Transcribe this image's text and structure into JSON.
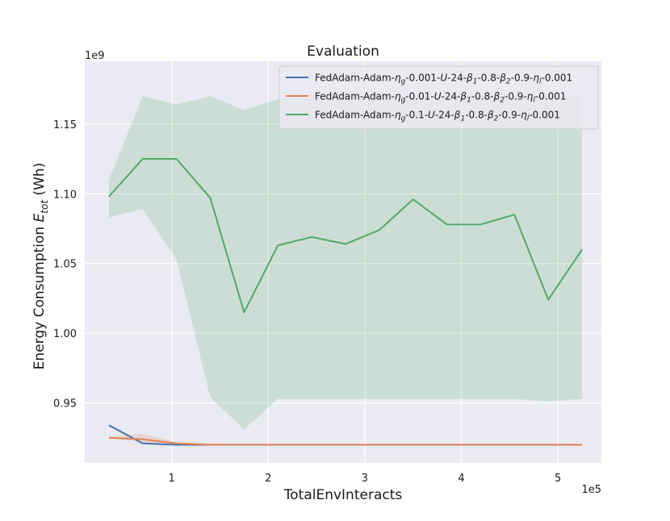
{
  "chart_data": {
    "type": "line",
    "title": "Evaluation",
    "xlabel": "TotalEnvInteracts",
    "ylabel_parts": [
      "Energy Consumption ",
      "E",
      "tot",
      " (Wh)"
    ],
    "x_exponent_label": "1e5",
    "y_exponent_label": "1e9",
    "x_unit_scale": 100000,
    "y_unit_scale": 1000000000,
    "xlim": [
      10000,
      545000
    ],
    "ylim": [
      0.907,
      1.195
    ],
    "x_ticks": [
      100000,
      200000,
      300000,
      400000,
      500000
    ],
    "x_tick_labels": [
      "1",
      "2",
      "3",
      "4",
      "5"
    ],
    "y_ticks": [
      0.95,
      1.0,
      1.05,
      1.1,
      1.15
    ],
    "y_tick_labels": [
      "0.95",
      "1.00",
      "1.05",
      "1.10",
      "1.15"
    ],
    "grid": true,
    "legend_position": "top-right",
    "x": [
      35000,
      70000,
      105000,
      140000,
      175000,
      210000,
      245000,
      280000,
      315000,
      350000,
      385000,
      420000,
      455000,
      490000,
      525000
    ],
    "series": [
      {
        "name_parts": [
          [
            "FedAdam-Adam-",
            "n"
          ],
          [
            "η",
            "i"
          ],
          [
            "g",
            "sub"
          ],
          [
            "-0.001-",
            "n"
          ],
          [
            "U",
            "i"
          ],
          [
            "-24-",
            "n"
          ],
          [
            "β",
            "i"
          ],
          [
            "1",
            "sub"
          ],
          [
            "-0.8-",
            "n"
          ],
          [
            "β",
            "i"
          ],
          [
            "2",
            "sub"
          ],
          [
            "-0.9-",
            "n"
          ],
          [
            "η",
            "i"
          ],
          [
            "l",
            "sub"
          ],
          [
            "-0.001",
            "n"
          ]
        ],
        "color": "#4c72b0",
        "values": [
          0.934,
          0.921,
          0.92,
          0.92,
          0.92,
          0.92,
          0.92,
          0.92,
          0.92,
          0.92,
          0.92,
          0.92,
          0.92,
          0.92,
          0.92
        ],
        "lower": [
          0.934,
          0.921,
          0.92,
          0.92,
          0.92,
          0.92,
          0.92,
          0.92,
          0.92,
          0.92,
          0.92,
          0.92,
          0.92,
          0.92,
          0.92
        ],
        "upper": [
          0.934,
          0.921,
          0.92,
          0.92,
          0.92,
          0.92,
          0.92,
          0.92,
          0.92,
          0.92,
          0.92,
          0.92,
          0.92,
          0.92,
          0.92
        ]
      },
      {
        "name_parts": [
          [
            "FedAdam-Adam-",
            "n"
          ],
          [
            "η",
            "i"
          ],
          [
            "g",
            "sub"
          ],
          [
            "-0.01-",
            "n"
          ],
          [
            "U",
            "i"
          ],
          [
            "-24-",
            "n"
          ],
          [
            "β",
            "i"
          ],
          [
            "1",
            "sub"
          ],
          [
            "-0.8-",
            "n"
          ],
          [
            "β",
            "i"
          ],
          [
            "2",
            "sub"
          ],
          [
            "-0.9-",
            "n"
          ],
          [
            "η",
            "i"
          ],
          [
            "l",
            "sub"
          ],
          [
            "-0.001",
            "n"
          ]
        ],
        "color": "#dd8452",
        "values": [
          0.925,
          0.924,
          0.921,
          0.92,
          0.92,
          0.92,
          0.92,
          0.92,
          0.92,
          0.92,
          0.92,
          0.92,
          0.92,
          0.92,
          0.92
        ],
        "lower": [
          0.925,
          0.922,
          0.92,
          0.92,
          0.92,
          0.92,
          0.92,
          0.92,
          0.92,
          0.92,
          0.92,
          0.92,
          0.92,
          0.92,
          0.919
        ],
        "upper": [
          0.926,
          0.928,
          0.922,
          0.921,
          0.92,
          0.92,
          0.92,
          0.92,
          0.92,
          0.92,
          0.92,
          0.92,
          0.92,
          0.92,
          0.92
        ]
      },
      {
        "name_parts": [
          [
            "FedAdam-Adam-",
            "n"
          ],
          [
            "η",
            "i"
          ],
          [
            "g",
            "sub"
          ],
          [
            "-0.1-",
            "n"
          ],
          [
            "U",
            "i"
          ],
          [
            "-24-",
            "n"
          ],
          [
            "β",
            "i"
          ],
          [
            "1",
            "sub"
          ],
          [
            "-0.8-",
            "n"
          ],
          [
            "β",
            "i"
          ],
          [
            "2",
            "sub"
          ],
          [
            "-0.9-",
            "n"
          ],
          [
            "η",
            "i"
          ],
          [
            "l",
            "sub"
          ],
          [
            "-0.001",
            "n"
          ]
        ],
        "color": "#55a868",
        "values": [
          1.098,
          1.125,
          1.125,
          1.097,
          1.015,
          1.063,
          1.069,
          1.064,
          1.074,
          1.096,
          1.078,
          1.078,
          1.085,
          1.024,
          1.06
        ],
        "lower": [
          1.083,
          1.089,
          1.053,
          0.954,
          0.931,
          0.953,
          0.953,
          0.953,
          0.953,
          0.953,
          0.953,
          0.953,
          0.953,
          0.951,
          0.953
        ],
        "upper": [
          1.11,
          1.17,
          1.164,
          1.17,
          1.16,
          1.168,
          1.17,
          1.17,
          1.17,
          1.17,
          1.17,
          1.17,
          1.17,
          1.17,
          1.17
        ]
      }
    ]
  }
}
